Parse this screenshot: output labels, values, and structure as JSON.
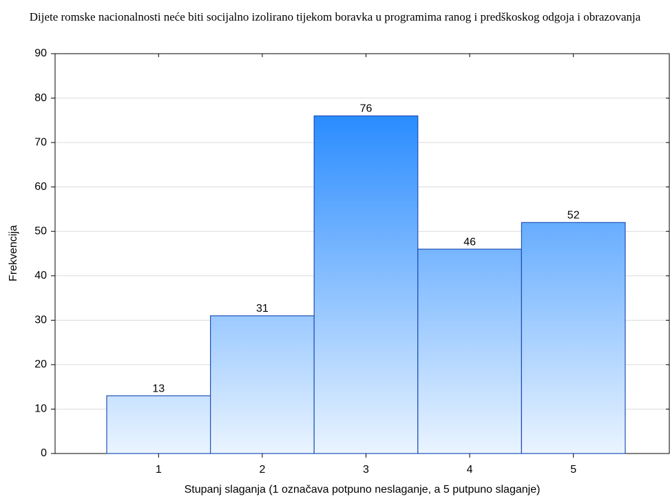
{
  "chart_data": {
    "type": "bar",
    "title": "Dijete romske nacionalnosti neće biti socijalno izolirano tijekom boravka u programima ranog i predškoskog odgoja i obrazovanja",
    "x_label": "Stupanj slaganja (1 označava potpuno neslaganje, a 5 putpuno slaganje)",
    "y_label": "Frekvencija",
    "categories": [
      "1",
      "2",
      "3",
      "4",
      "5"
    ],
    "values": [
      13,
      31,
      76,
      46,
      52
    ],
    "color": "#2a8cff",
    "ylim": [
      0,
      90
    ],
    "yticks": [
      0,
      10,
      20,
      30,
      40,
      50,
      60,
      70,
      80,
      90
    ],
    "grid": true
  }
}
